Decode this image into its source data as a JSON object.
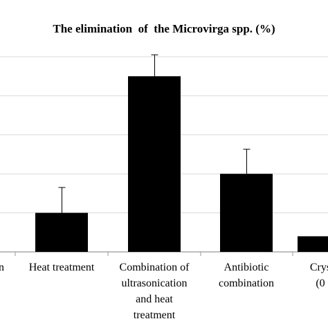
{
  "chart_data": {
    "type": "bar",
    "title": "The elimination  of  the Microvirga spp. (%)",
    "categories": [
      "on",
      "Heat treatment",
      "Combination of ultrasonication and heat treatment",
      "Antibiotic combination",
      "Crys (0"
    ],
    "category_lines": [
      [
        "on"
      ],
      [
        "Heat treatment"
      ],
      [
        "Combination of",
        "ultrasonication",
        "and heat",
        "treatment"
      ],
      [
        "Antibiotic",
        "combination"
      ],
      [
        "Crys",
        "(0"
      ]
    ],
    "values": [
      0,
      10,
      45,
      20,
      4
    ],
    "errors": [
      0,
      6.5,
      5.5,
      6.3,
      0
    ],
    "ylim": [
      0,
      50
    ],
    "grid": true,
    "xlabel": "",
    "ylabel": "",
    "colors": {
      "bar": "#000000",
      "grid": "#d9d9d9",
      "axis": "#999999"
    }
  }
}
